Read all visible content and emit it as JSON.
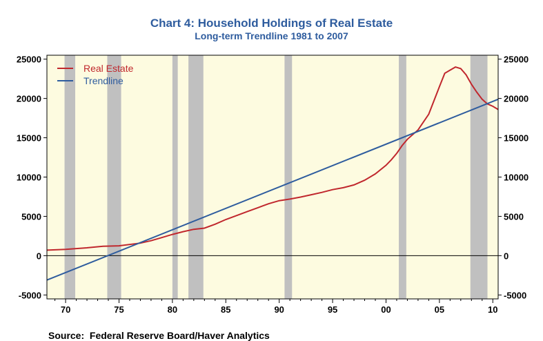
{
  "chart_data": {
    "type": "line",
    "title": "Chart 4: Household Holdings of Real Estate",
    "subtitle": "Long-term Trendline 1981 to 2007",
    "source": "Source:  Federal Reserve Board/Haver Analytics",
    "x_ticks": [
      "70",
      "75",
      "80",
      "85",
      "90",
      "95",
      "00",
      "05",
      "10"
    ],
    "x_tick_years": [
      1970,
      1975,
      1980,
      1985,
      1990,
      1995,
      2000,
      2005,
      2010
    ],
    "xlim": [
      1968.25,
      2010.5
    ],
    "y_ticks": [
      "25000",
      "20000",
      "15000",
      "10000",
      "5000",
      "0",
      "-5000"
    ],
    "y_tick_values": [
      25000,
      20000,
      15000,
      10000,
      5000,
      0,
      -5000
    ],
    "ylim": [
      -5500,
      25500
    ],
    "zero_line": true,
    "grid": false,
    "plot_background": "#fdfbe0",
    "recession_color": "#c0c0c0",
    "recessions": [
      [
        1969.9,
        1970.9
      ],
      [
        1973.9,
        1975.2
      ],
      [
        1980.0,
        1980.5
      ],
      [
        1981.5,
        1982.9
      ],
      [
        1990.5,
        1991.2
      ],
      [
        2001.2,
        2001.9
      ],
      [
        2007.9,
        2009.5
      ]
    ],
    "legend_position": "top-left",
    "series": [
      {
        "name": "Real Estate",
        "color": "#c0272d",
        "x": [
          1968.25,
          1970,
          1972,
          1973.5,
          1975,
          1977,
          1978,
          1979,
          1980,
          1981,
          1982,
          1983,
          1984,
          1985,
          1986,
          1987,
          1988,
          1989,
          1990,
          1991,
          1992,
          1993,
          1994,
          1995,
          1996,
          1997,
          1998,
          1999,
          2000,
          2000.5,
          2001,
          2001.5,
          2002,
          2003,
          2004,
          2005,
          2005.5,
          2006,
          2006.5,
          2007,
          2007.5,
          2008,
          2008.5,
          2009,
          2009.5,
          2010,
          2010.5
        ],
        "values": [
          700,
          800,
          1000,
          1200,
          1250,
          1600,
          1900,
          2300,
          2700,
          3050,
          3350,
          3500,
          4000,
          4600,
          5100,
          5600,
          6100,
          6600,
          7000,
          7200,
          7450,
          7750,
          8050,
          8400,
          8650,
          9000,
          9600,
          10400,
          11500,
          12200,
          13000,
          14000,
          14800,
          16000,
          18000,
          21500,
          23200,
          23600,
          24000,
          23800,
          23000,
          21800,
          20800,
          19900,
          19300,
          19000,
          18600
        ]
      },
      {
        "name": "Trendline",
        "color": "#2e5c9e",
        "x": [
          1968.25,
          2010.5
        ],
        "values": [
          -3100,
          19900
        ]
      }
    ]
  }
}
